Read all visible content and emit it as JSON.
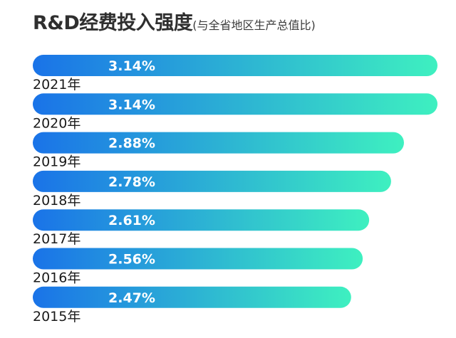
{
  "title": {
    "main": "R&D经费投入强度",
    "sub": "(与全省地区生产总值比)"
  },
  "colors": {
    "bar_start": "#1a73e8",
    "bar_end": "#3ef0c0",
    "title": "#2f2f2f"
  },
  "chart_data": {
    "type": "bar",
    "orientation": "horizontal",
    "categories": [
      "2021年",
      "2020年",
      "2019年",
      "2018年",
      "2017年",
      "2016年",
      "2015年"
    ],
    "values": [
      3.14,
      3.14,
      2.88,
      2.78,
      2.61,
      2.56,
      2.47
    ],
    "data_labels": [
      "3.14%",
      "3.14%",
      "2.88%",
      "2.78%",
      "2.61%",
      "2.56%",
      "2.47%"
    ],
    "title": "R&D经费投入强度",
    "subtitle": "(与全省地区生产总值比)",
    "grid": false,
    "legend": "none"
  }
}
